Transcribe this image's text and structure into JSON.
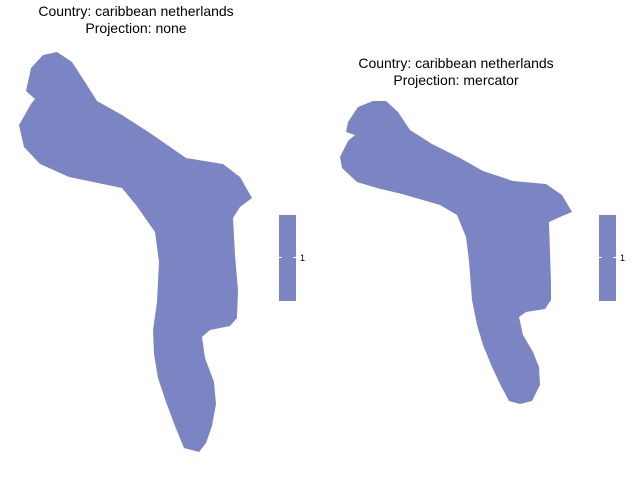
{
  "colors": {
    "fill": "#7b85c3",
    "background": "#ffffff",
    "text": "#000000"
  },
  "panels": [
    {
      "title_line1": "Country: caribbean netherlands",
      "title_line2": "Projection: none",
      "legend_label": "1"
    },
    {
      "title_line1": "Country: caribbean netherlands",
      "title_line2": "Projection: mercator",
      "legend_label": "1"
    }
  ]
}
